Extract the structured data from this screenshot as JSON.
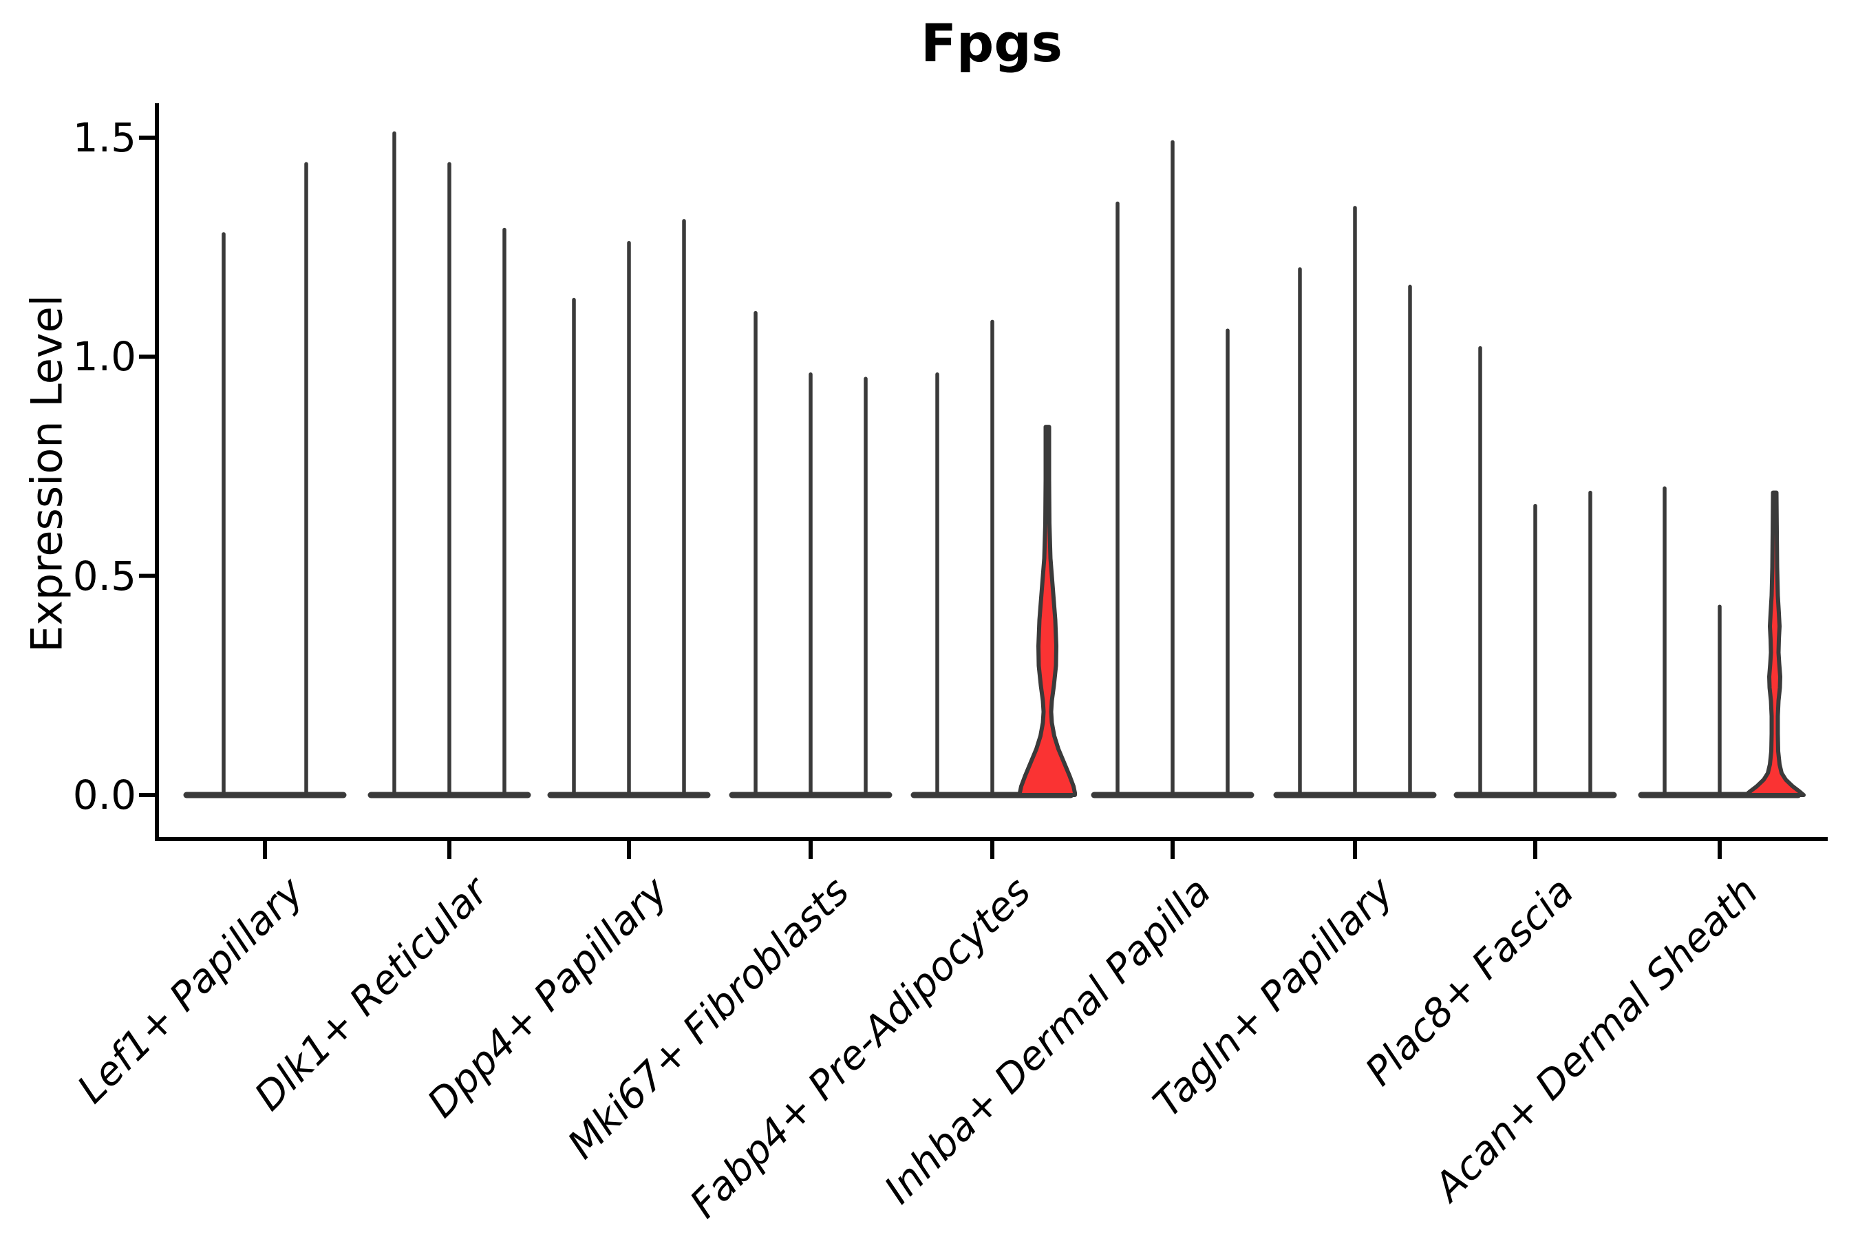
{
  "colors": {
    "violin_line": "#3A3A3A",
    "highlight_fill": "#FA3333",
    "axis": "#000000",
    "text": "#000000"
  },
  "chart_data": {
    "type": "violin",
    "title": "Fpgs",
    "ylabel": "Expression Level",
    "xlabel": "",
    "grid": false,
    "legend": false,
    "ylim": [
      -0.11,
      1.58
    ],
    "yticks": [
      {
        "label": "0.0",
        "value": 0.0
      },
      {
        "label": "0.5",
        "value": 0.5
      },
      {
        "label": "1.0",
        "value": 1.0
      },
      {
        "label": "1.5",
        "value": 1.5
      }
    ],
    "groups": [
      {
        "label": "Lef1+ Papillary",
        "violins": [
          {
            "max": 1.28
          },
          {
            "max": 1.44
          }
        ]
      },
      {
        "label": "Dlk1+ Reticular",
        "violins": [
          {
            "max": 1.51
          },
          {
            "max": 1.44
          },
          {
            "max": 1.29
          }
        ]
      },
      {
        "label": "Dpp4+ Papillary",
        "violins": [
          {
            "max": 1.13
          },
          {
            "max": 1.26
          },
          {
            "max": 1.31
          }
        ]
      },
      {
        "label": "Mki67+ Fibroblasts",
        "violins": [
          {
            "max": 1.1
          },
          {
            "max": 0.96
          },
          {
            "max": 0.95
          }
        ]
      },
      {
        "label": "Fabp4+ Pre-Adipocytes",
        "violins": [
          {
            "max": 0.96
          },
          {
            "max": 1.08
          },
          {
            "max": 0.84,
            "highlighted": true,
            "profile": [
              [
                0.84,
                2.5
              ],
              [
                0.72,
                2.5
              ],
              [
                0.62,
                3
              ],
              [
                0.54,
                4.5
              ],
              [
                0.47,
                8
              ],
              [
                0.4,
                11.5
              ],
              [
                0.34,
                13
              ],
              [
                0.295,
                12.5
              ],
              [
                0.25,
                9.5
              ],
              [
                0.215,
                6.5
              ],
              [
                0.19,
                5.5
              ],
              [
                0.165,
                6.5
              ],
              [
                0.135,
                10
              ],
              [
                0.105,
                16
              ],
              [
                0.075,
                24
              ],
              [
                0.045,
                32
              ],
              [
                0.02,
                38
              ],
              [
                0.005,
                40
              ],
              [
                0.0,
                40
              ]
            ]
          }
        ]
      },
      {
        "label": "Inhba+ Dermal Papilla",
        "violins": [
          {
            "max": 1.35
          },
          {
            "max": 1.49
          },
          {
            "max": 1.06
          }
        ]
      },
      {
        "label": "Tagln+ Papillary",
        "violins": [
          {
            "max": 1.2
          },
          {
            "max": 1.34
          },
          {
            "max": 1.16
          }
        ]
      },
      {
        "label": "Plac8+ Fascia",
        "violins": [
          {
            "max": 1.02
          },
          {
            "max": 0.66
          },
          {
            "max": 0.69
          }
        ]
      },
      {
        "label": "Acan+ Dermal Sheath",
        "violins": [
          {
            "max": 0.7
          },
          {
            "max": 0.43
          },
          {
            "max": 0.69,
            "highlighted": true,
            "profile": [
              [
                0.69,
                2.5
              ],
              [
                0.6,
                3
              ],
              [
                0.52,
                3.5
              ],
              [
                0.455,
                4.5
              ],
              [
                0.415,
                6
              ],
              [
                0.385,
                7
              ],
              [
                0.355,
                6
              ],
              [
                0.325,
                5.5
              ],
              [
                0.3,
                6.5
              ],
              [
                0.27,
                8
              ],
              [
                0.245,
                7.5
              ],
              [
                0.215,
                5.5
              ],
              [
                0.18,
                4.5
              ],
              [
                0.14,
                4.5
              ],
              [
                0.1,
                5
              ],
              [
                0.07,
                7
              ],
              [
                0.05,
                10
              ],
              [
                0.035,
                16
              ],
              [
                0.02,
                26
              ],
              [
                0.008,
                36
              ],
              [
                0.0,
                42
              ]
            ]
          }
        ]
      }
    ]
  }
}
